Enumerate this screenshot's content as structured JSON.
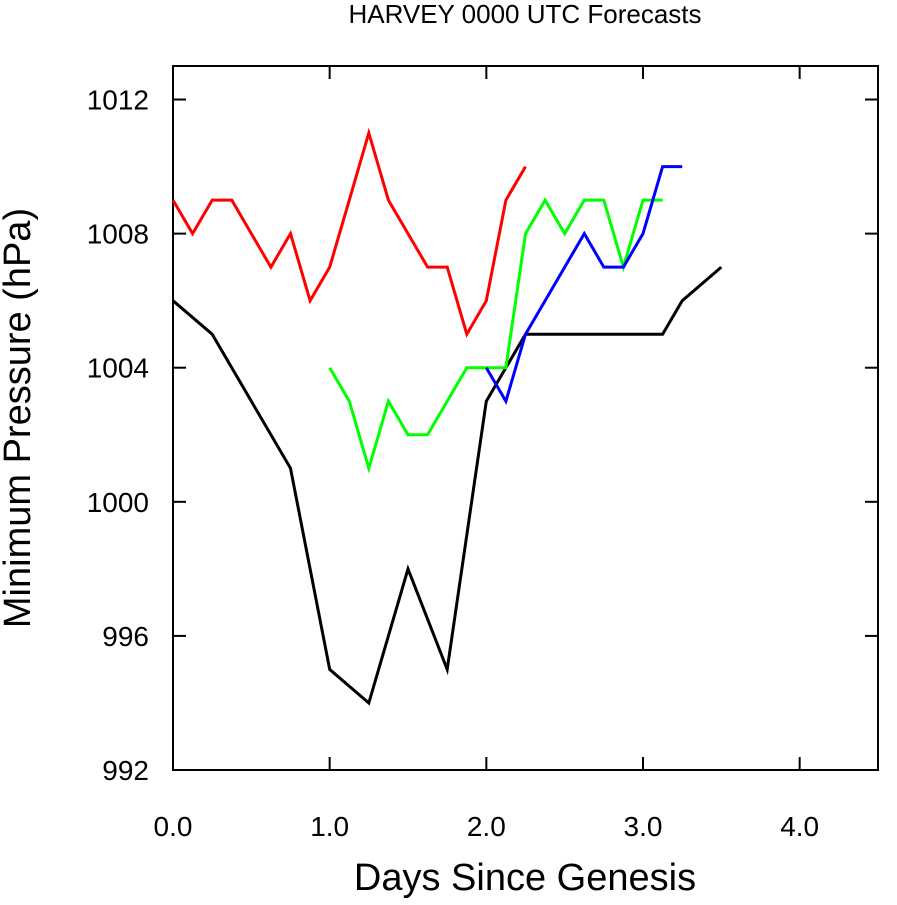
{
  "chart_data": {
    "type": "line",
    "title": "HARVEY 0000 UTC Forecasts",
    "xlabel": "Days Since Genesis",
    "ylabel": "Minimum Pressure (hPa)",
    "xlim": [
      0,
      4.5
    ],
    "ylim": [
      992,
      1013
    ],
    "xticks": [
      0,
      1,
      2,
      3,
      4
    ],
    "xtick_labels": [
      "0.0",
      "1.0",
      "2.0",
      "3.0",
      "4.0"
    ],
    "yticks": [
      992,
      996,
      1000,
      1004,
      1008,
      1012
    ],
    "ytick_labels": [
      "992",
      "996",
      "1000",
      "1004",
      "1008",
      "1012"
    ],
    "grid": false,
    "series": [
      {
        "color": "#ff0000",
        "x": [
          0,
          0.125,
          0.25,
          0.375,
          0.5,
          0.625,
          0.75,
          0.875,
          1.0,
          1.125,
          1.25,
          1.375,
          1.5,
          1.625,
          1.75,
          1.875,
          2.0,
          2.125,
          2.25
        ],
        "y": [
          1009,
          1008,
          1009,
          1009,
          1008,
          1007,
          1008,
          1006,
          1007,
          1009,
          1011,
          1009,
          1008,
          1007,
          1007,
          1005,
          1006,
          1009,
          1010
        ]
      },
      {
        "color": "#000000",
        "x": [
          0,
          0.25,
          0.75,
          1.0,
          1.25,
          1.5,
          1.75,
          2.0,
          2.25,
          2.5,
          2.75,
          3.0,
          3.125,
          3.25,
          3.5
        ],
        "y": [
          1006,
          1005,
          1001,
          995,
          994,
          998,
          995,
          1003,
          1005,
          1005,
          1005,
          1005,
          1005,
          1006,
          1007
        ]
      },
      {
        "color": "#00ff00",
        "x": [
          1.0,
          1.125,
          1.25,
          1.375,
          1.5,
          1.625,
          1.75,
          1.875,
          2.0,
          2.125,
          2.25,
          2.375,
          2.5,
          2.625,
          2.75,
          2.875,
          3.0,
          3.125
        ],
        "y": [
          1004,
          1003,
          1001,
          1003,
          1002,
          1002,
          1003,
          1004,
          1004,
          1004,
          1008,
          1009,
          1008,
          1009,
          1009,
          1007,
          1009,
          1009
        ]
      },
      {
        "color": "#0000ff",
        "x": [
          2.0,
          2.125,
          2.25,
          2.375,
          2.5,
          2.625,
          2.75,
          2.875,
          3.0,
          3.125,
          3.25
        ],
        "y": [
          1004,
          1003,
          1005,
          1006,
          1007,
          1008,
          1007,
          1007,
          1008,
          1010,
          1010
        ]
      }
    ]
  }
}
